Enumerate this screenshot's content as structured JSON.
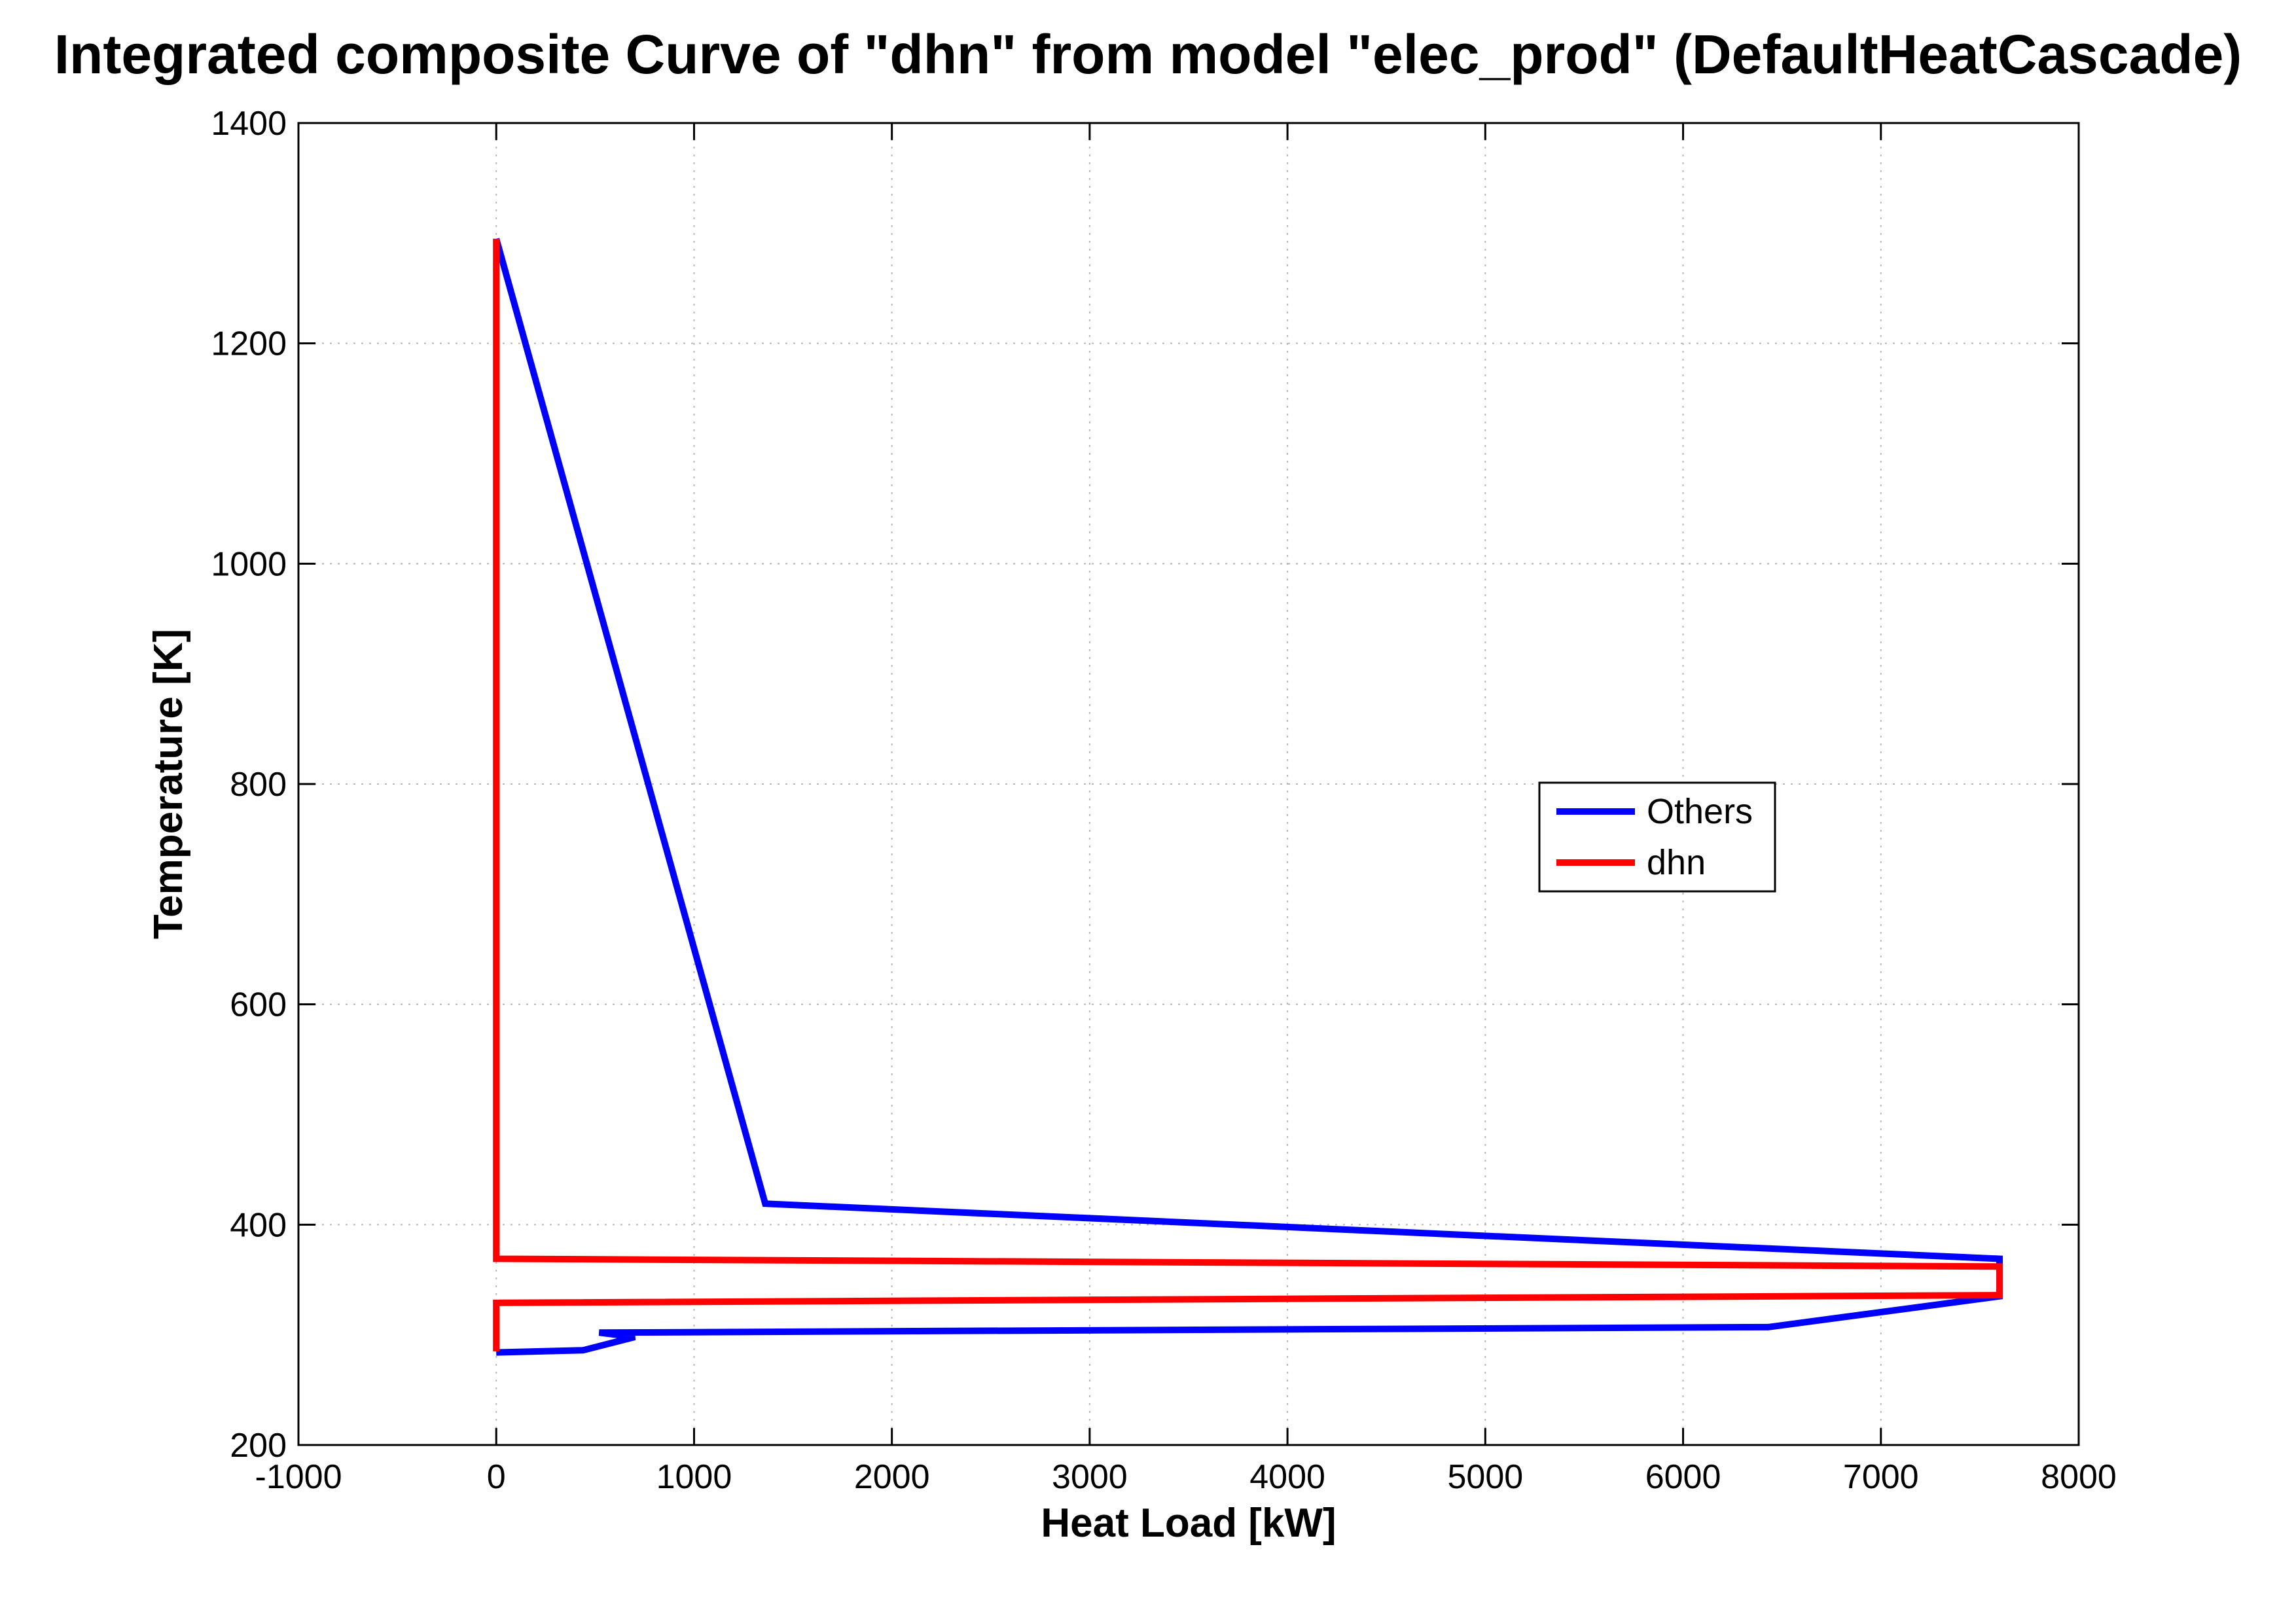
{
  "chart_data": {
    "type": "line",
    "title": "Integrated composite Curve of \"dhn\" from model \"elec_prod\" (DefaultHeatCascade)",
    "xlabel": "Heat Load [kW]",
    "ylabel": "Temperature [K]",
    "xlim": [
      -1000,
      8000
    ],
    "ylim": [
      200,
      1400
    ],
    "xticks": [
      -1000,
      0,
      1000,
      2000,
      3000,
      4000,
      5000,
      6000,
      7000,
      8000
    ],
    "yticks": [
      200,
      400,
      600,
      800,
      1000,
      1200,
      1400
    ],
    "grid": true,
    "legend_position": "center-right",
    "series": [
      {
        "name": "Others",
        "color": "#0000ff",
        "x": [
          0,
          1360,
          7600,
          7600,
          6430,
          520,
          700,
          440,
          0
        ],
        "y": [
          1295,
          419,
          369,
          335,
          307,
          302,
          298,
          286,
          284
        ]
      },
      {
        "name": "dhn",
        "color": "#ff0000",
        "x": [
          0,
          0,
          7600,
          7600,
          0,
          0
        ],
        "y": [
          1295,
          369,
          362,
          336,
          329,
          285
        ]
      }
    ]
  }
}
